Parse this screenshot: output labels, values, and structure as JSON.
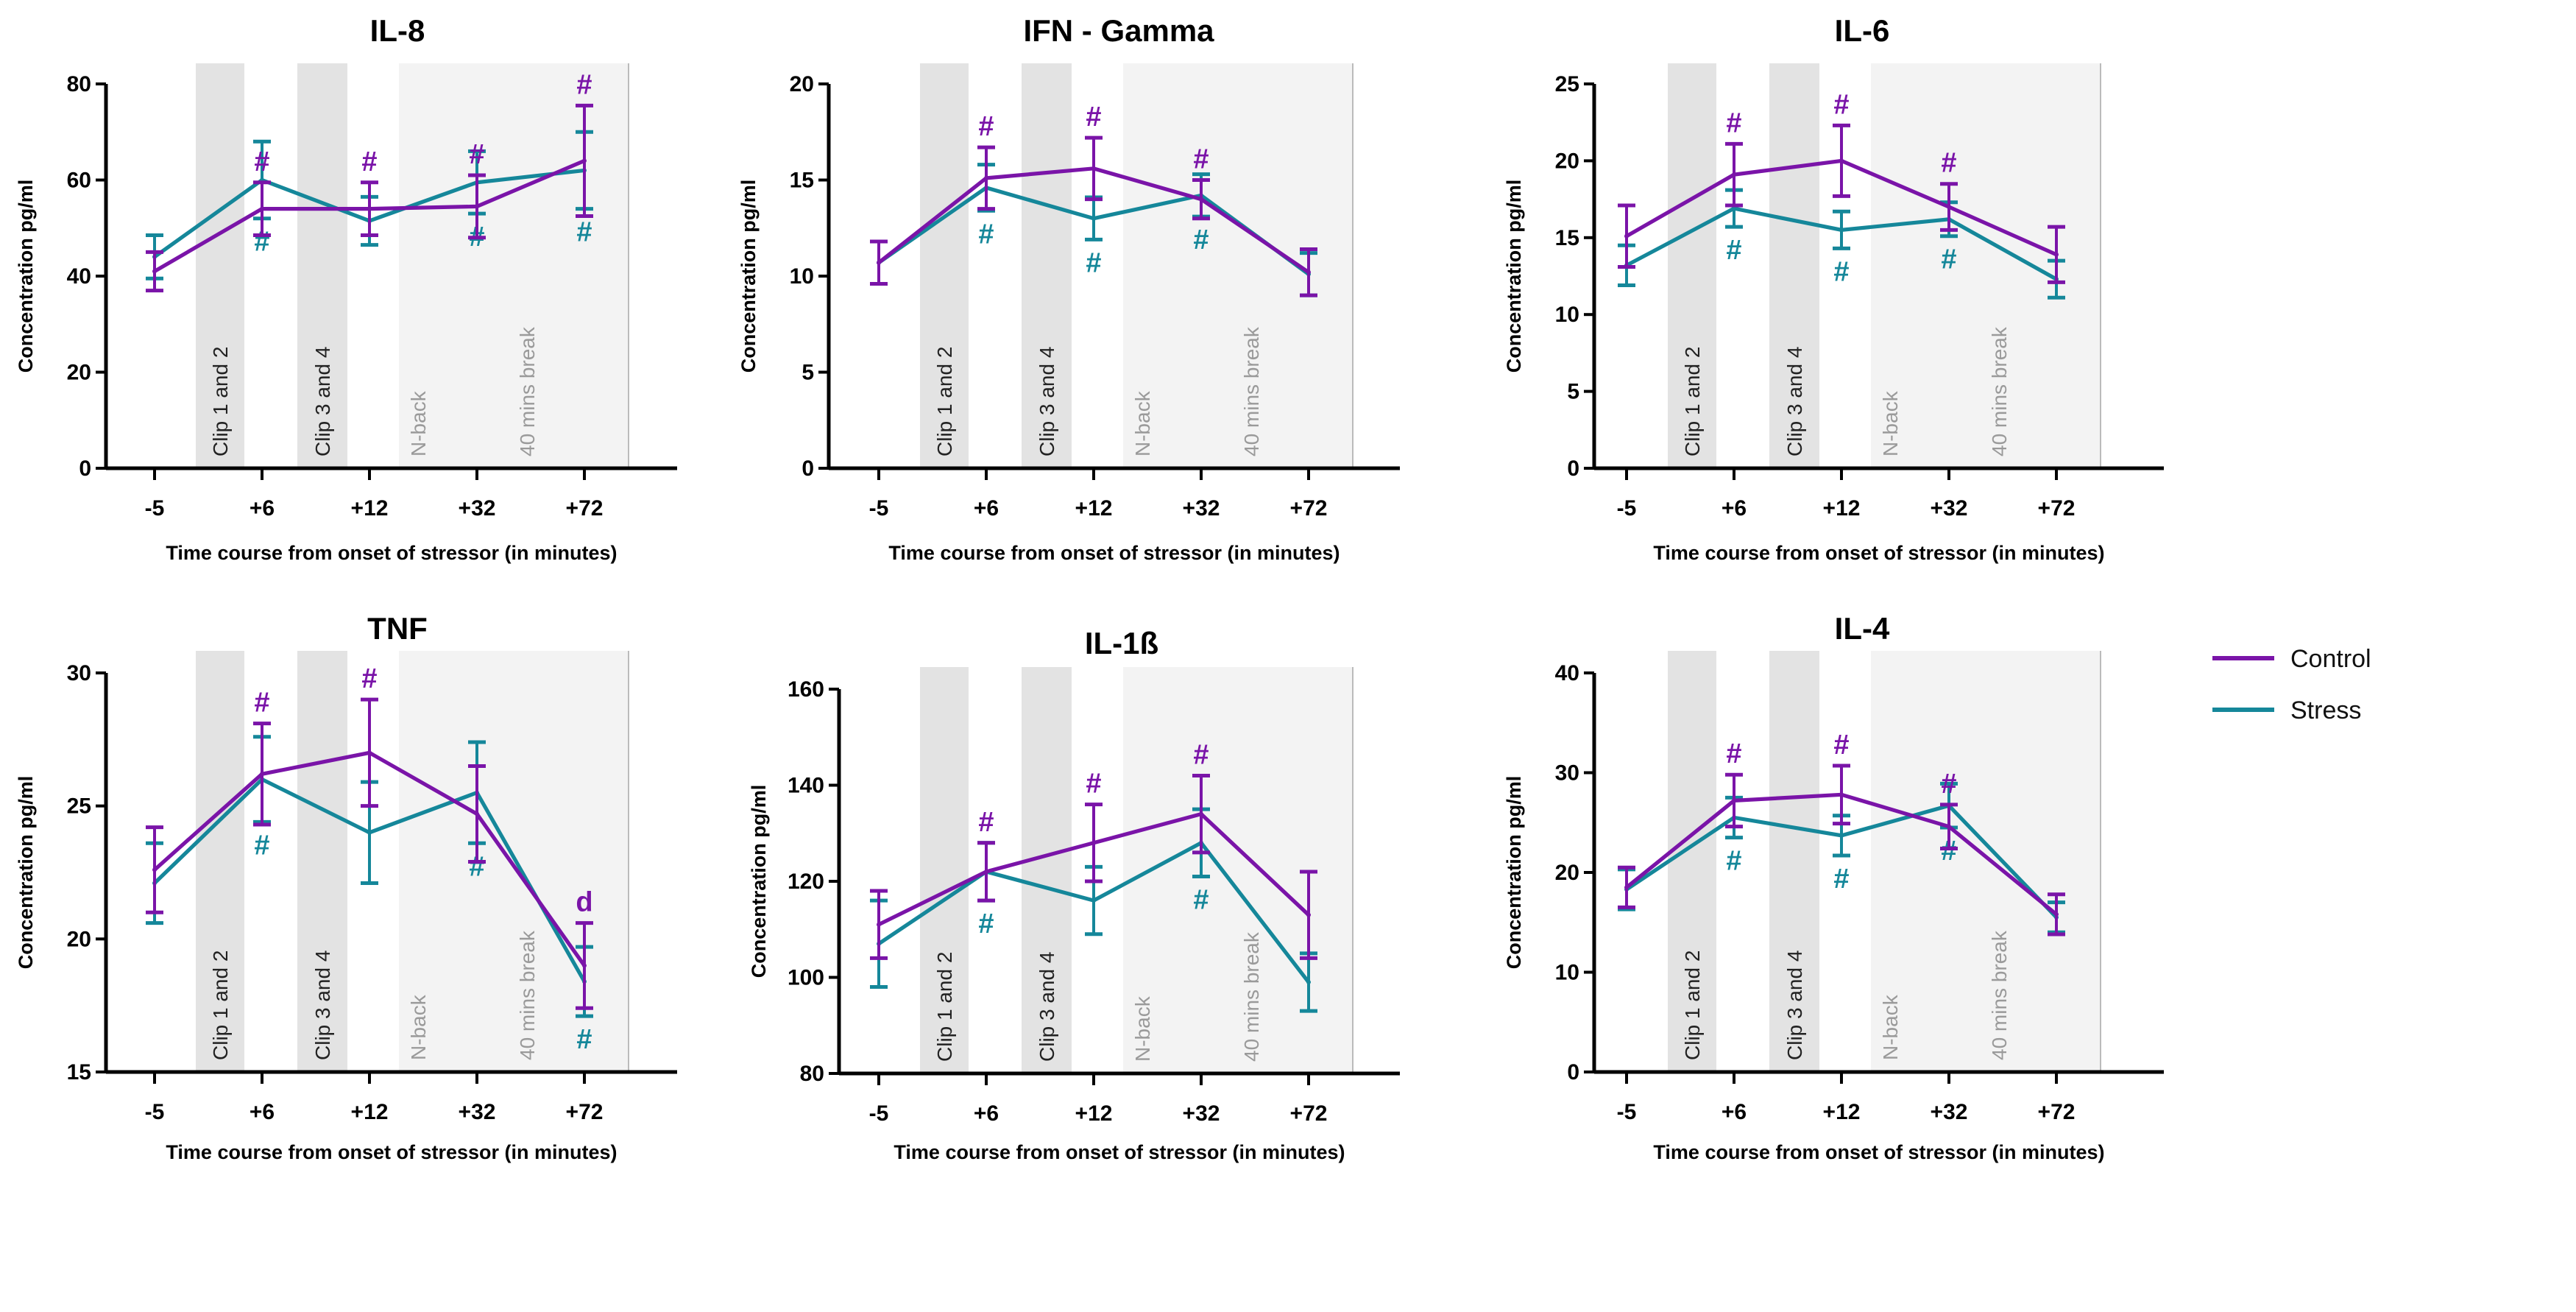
{
  "colors": {
    "Control": "#7a14a8",
    "Stress": "#15879a",
    "clip_band": "#e3e3e3",
    "task_band": "#f3f3f3"
  },
  "legend": {
    "items": [
      "Control",
      "Stress"
    ],
    "placement": "right"
  },
  "chart_data": [
    {
      "type": "line",
      "title": "IL-8",
      "xlabel": "Time course from onset of stressor (in minutes)",
      "ylabel": "Concentration pg/ml",
      "categories": [
        "-5",
        "+6",
        "+12",
        "+32",
        "+72"
      ],
      "ylim": [
        0,
        80
      ],
      "yticks": [
        "0",
        "20",
        "40",
        "60",
        "80"
      ],
      "bands": [
        "Clip 1 and 2",
        "Clip 3 and 4",
        "N-back",
        "40  mins break"
      ],
      "series": [
        {
          "name": "Control",
          "values": [
            41,
            54,
            54,
            54.5,
            64
          ],
          "errors": [
            4,
            5.5,
            5.5,
            6.5,
            11.5
          ],
          "marks": [
            "",
            "#",
            "#",
            "#",
            "#"
          ]
        },
        {
          "name": "Stress",
          "values": [
            44,
            60,
            51.5,
            59.5,
            62
          ],
          "errors": [
            4.5,
            8,
            5,
            6.5,
            8
          ],
          "marks": [
            "",
            "#",
            "",
            "#",
            "#"
          ]
        }
      ]
    },
    {
      "type": "line",
      "title": "IFN - Gamma",
      "xlabel": "Time course from onset of stressor (in minutes)",
      "ylabel": "Concentration pg/ml",
      "categories": [
        "-5",
        "+6",
        "+12",
        "+32",
        "+72"
      ],
      "ylim": [
        0,
        20
      ],
      "yticks": [
        "0",
        "5",
        "10",
        "15",
        "20"
      ],
      "bands": [
        "Clip 1 and 2",
        "Clip 3 and 4",
        "N-back",
        "40  mins break"
      ],
      "series": [
        {
          "name": "Control",
          "values": [
            10.7,
            15.1,
            15.6,
            14.0,
            10.2
          ],
          "errors": [
            1.1,
            1.6,
            1.6,
            1.0,
            1.2
          ],
          "marks": [
            "",
            "#",
            "#",
            "#",
            ""
          ]
        },
        {
          "name": "Stress",
          "values": [
            10.7,
            14.6,
            13.0,
            14.2,
            10.1
          ],
          "errors": [
            1.1,
            1.2,
            1.1,
            1.1,
            1.1
          ],
          "marks": [
            "",
            "#",
            "#",
            "#",
            ""
          ]
        }
      ]
    },
    {
      "type": "line",
      "title": "IL-6",
      "xlabel": "Time course from onset of stressor (in minutes)",
      "ylabel": "Concentration pg/ml",
      "categories": [
        "-5",
        "+6",
        "+12",
        "+32",
        "+72"
      ],
      "ylim": [
        0,
        25
      ],
      "yticks": [
        "0",
        "5",
        "10",
        "15",
        "20",
        "25"
      ],
      "bands": [
        "Clip 1 and 2",
        "Clip 3 and 4",
        "N-back",
        "40  mins break"
      ],
      "series": [
        {
          "name": "Control",
          "values": [
            15.1,
            19.1,
            20.0,
            17.0,
            13.9
          ],
          "errors": [
            2.0,
            2.0,
            2.3,
            1.5,
            1.8
          ],
          "marks": [
            "",
            "#",
            "#",
            "#",
            ""
          ]
        },
        {
          "name": "Stress",
          "values": [
            13.2,
            16.9,
            15.5,
            16.2,
            12.3
          ],
          "errors": [
            1.3,
            1.2,
            1.2,
            1.1,
            1.2
          ],
          "marks": [
            "",
            "#",
            "#",
            "#",
            ""
          ]
        }
      ]
    },
    {
      "type": "line",
      "title": "TNF",
      "xlabel": "Time course from onset of stressor (in minutes)",
      "ylabel": "Concentration pg/ml",
      "categories": [
        "-5",
        "+6",
        "+12",
        "+32",
        "+72"
      ],
      "ylim": [
        15,
        30
      ],
      "yticks": [
        "15",
        "20",
        "25",
        "30"
      ],
      "bands": [
        "Clip 1 and 2",
        "Clip 3 and 4",
        "N-back",
        "40  mins break"
      ],
      "series": [
        {
          "name": "Control",
          "values": [
            22.6,
            26.2,
            27.0,
            24.7,
            19.0
          ],
          "errors": [
            1.6,
            1.9,
            2.0,
            1.8,
            1.6
          ],
          "marks": [
            "",
            "#",
            "#",
            "",
            "d"
          ]
        },
        {
          "name": "Stress",
          "values": [
            22.1,
            26.0,
            24.0,
            25.5,
            18.4
          ],
          "errors": [
            1.5,
            1.6,
            1.9,
            1.9,
            1.3
          ],
          "marks": [
            "",
            "#",
            "",
            "#",
            "#"
          ]
        }
      ]
    },
    {
      "type": "line",
      "title": "IL-1ß",
      "xlabel": "Time course from onset of stressor (in minutes)",
      "ylabel": "Concentration pg/ml",
      "categories": [
        "-5",
        "+6",
        "+12",
        "+32",
        "+72"
      ],
      "ylim": [
        80,
        160
      ],
      "yticks": [
        "80",
        "100",
        "120",
        "140",
        "160"
      ],
      "bands": [
        "Clip 1 and 2",
        "Clip 3 and 4",
        "N-back",
        "40  mins break"
      ],
      "series": [
        {
          "name": "Control",
          "values": [
            111,
            122,
            128,
            134,
            113
          ],
          "errors": [
            7,
            6,
            8,
            8,
            9
          ],
          "marks": [
            "",
            "#",
            "#",
            "#",
            ""
          ]
        },
        {
          "name": "Stress",
          "values": [
            107,
            122,
            116,
            128,
            99
          ],
          "errors": [
            9,
            6,
            7,
            7,
            6
          ],
          "marks": [
            "",
            "#",
            "",
            "#",
            ""
          ]
        }
      ]
    },
    {
      "type": "line",
      "title": "IL-4",
      "xlabel": "Time course from onset of stressor (in minutes)",
      "ylabel": "Concentration pg/ml",
      "categories": [
        "-5",
        "+6",
        "+12",
        "+32",
        "+72"
      ],
      "ylim": [
        0,
        40
      ],
      "yticks": [
        "0",
        "10",
        "20",
        "30",
        "40"
      ],
      "bands": [
        "Clip 1 and 2",
        "Clip 3 and 4",
        "N-back",
        "40  mins break"
      ],
      "series": [
        {
          "name": "Control",
          "values": [
            18.5,
            27.2,
            27.8,
            24.6,
            15.8
          ],
          "errors": [
            2,
            2.6,
            2.9,
            2.2,
            2
          ],
          "marks": [
            "",
            "#",
            "#",
            "#",
            ""
          ]
        },
        {
          "name": "Stress",
          "values": [
            18.3,
            25.5,
            23.7,
            26.7,
            15.5
          ],
          "errors": [
            2,
            2,
            2,
            2.2,
            1.5
          ],
          "marks": [
            "",
            "#",
            "#",
            "#",
            ""
          ]
        }
      ]
    }
  ]
}
